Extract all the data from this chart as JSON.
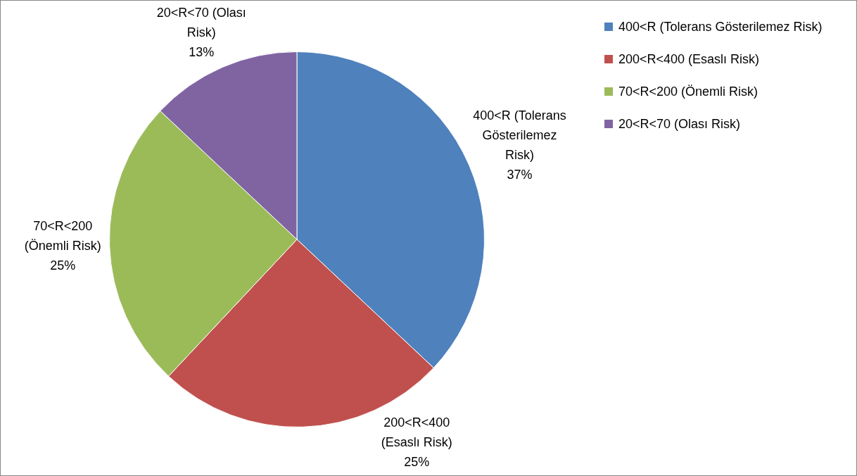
{
  "chart_data": {
    "type": "pie",
    "categories": [
      "400<R (Tolerans Gösterilemez Risk)",
      "200<R<400 (Esaslı Risk)",
      "70<R<200 (Önemli Risk)",
      "20<R<70 (Olası Risk)"
    ],
    "values": [
      37,
      25,
      25,
      13
    ],
    "value_labels": [
      "37%",
      "25%",
      "25%",
      "13%"
    ],
    "colors": [
      "#4f81bd",
      "#c0504d",
      "#9bbb59",
      "#8064a2"
    ],
    "legend": "right"
  }
}
